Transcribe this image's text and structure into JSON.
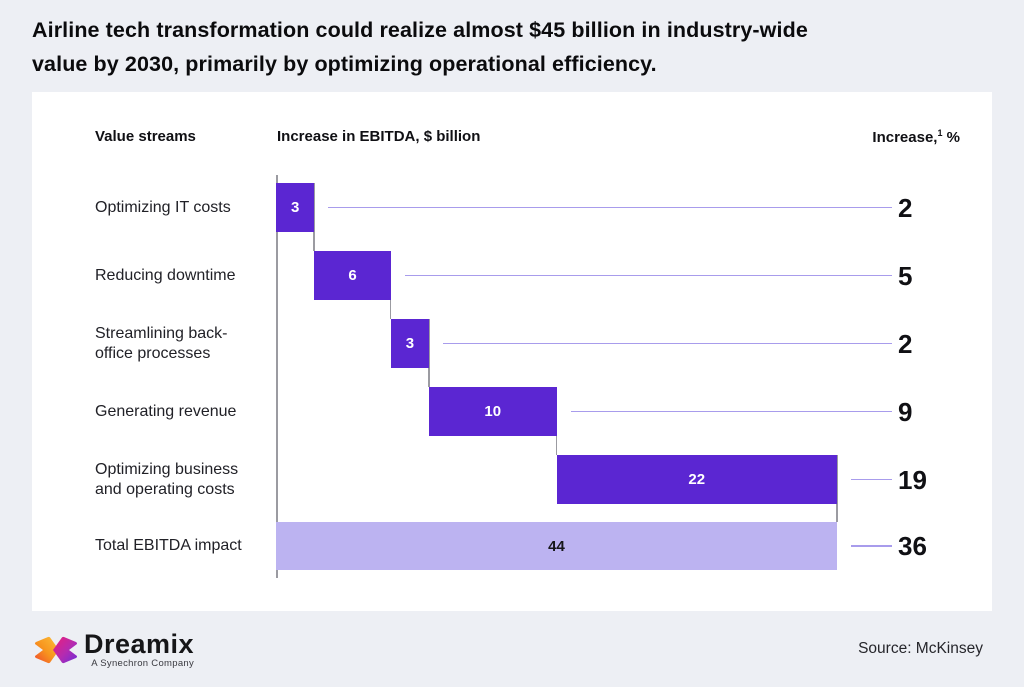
{
  "title": {
    "line1": "Airline tech transformation could realize almost $45 billion in industry-wide",
    "line2": "value by 2030, primarily by optimizing operational efficiency."
  },
  "card": {
    "headers": {
      "value_streams": "Value streams",
      "ebitda": "Increase in EBITDA, $ billion",
      "increase_prefix": "Increase,",
      "increase_sup": "1",
      "increase_suffix": " %"
    }
  },
  "chart_data": {
    "type": "bar",
    "subtype": "waterfall",
    "title": "Airline tech transformation could realize almost $45 billion in industry-wide value by 2030, primarily by optimizing operational efficiency.",
    "columns": [
      "Value streams",
      "Increase in EBITDA, $ billion",
      "Increase,1 %"
    ],
    "x_axis_label": "Increase in EBITDA, $ billion",
    "x_range": [
      0,
      44
    ],
    "grid": false,
    "rows": [
      {
        "label_lines": [
          "Optimizing IT costs"
        ],
        "label": "Optimizing IT costs",
        "start": 0,
        "value": 3,
        "increase_pct": 2,
        "kind": "step"
      },
      {
        "label_lines": [
          "Reducing downtime"
        ],
        "label": "Reducing downtime",
        "start": 3,
        "value": 6,
        "increase_pct": 5,
        "kind": "step"
      },
      {
        "label_lines": [
          "Streamlining back-",
          "office processes"
        ],
        "label": "Streamlining back-office processes",
        "start": 9,
        "value": 3,
        "increase_pct": 2,
        "kind": "step"
      },
      {
        "label_lines": [
          "Generating revenue"
        ],
        "label": "Generating revenue",
        "start": 12,
        "value": 10,
        "increase_pct": 9,
        "kind": "step"
      },
      {
        "label_lines": [
          "Optimizing business",
          "and operating costs"
        ],
        "label": "Optimizing business and operating costs",
        "start": 22,
        "value": 22,
        "increase_pct": 19,
        "kind": "step"
      },
      {
        "label_lines": [
          "Total EBITDA impact"
        ],
        "label": "Total EBITDA impact",
        "start": 0,
        "value": 44,
        "increase_pct": 36,
        "kind": "total"
      }
    ],
    "bar_color": "#5b26d2",
    "total_bar_color": "#bcb3f1",
    "connector_color": "#a89cec",
    "step_line_color": "#9b9ba1"
  },
  "footer": {
    "wordmark": "Dreamix",
    "tagline": "A Synechron Company",
    "source": "Source: McKinsey"
  },
  "colors": {
    "page_background": "#edeff4",
    "card_background": "#ffffff",
    "title_text": "#0b0b0d",
    "bar": "#5b26d2",
    "total_bar": "#bcb3f1",
    "connector": "#a89cec",
    "step_line": "#9b9ba1"
  }
}
